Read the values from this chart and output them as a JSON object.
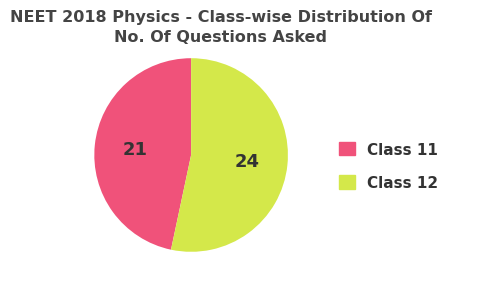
{
  "title": "NEET 2018 Physics - Class-wise Distribution Of\nNo. Of Questions Asked",
  "values": [
    21,
    24
  ],
  "labels": [
    "Class 11",
    "Class 12"
  ],
  "colors": [
    "#f0527a",
    "#d4e84a"
  ],
  "autopct_labels": [
    "21",
    "24"
  ],
  "legend_labels": [
    "Class 11",
    "Class 12"
  ],
  "title_fontsize": 11.5,
  "title_color": "#444444",
  "label_fontsize": 13,
  "label_color": "#333333",
  "background_color": "#ffffff",
  "startangle": 90,
  "legend_fontsize": 11
}
